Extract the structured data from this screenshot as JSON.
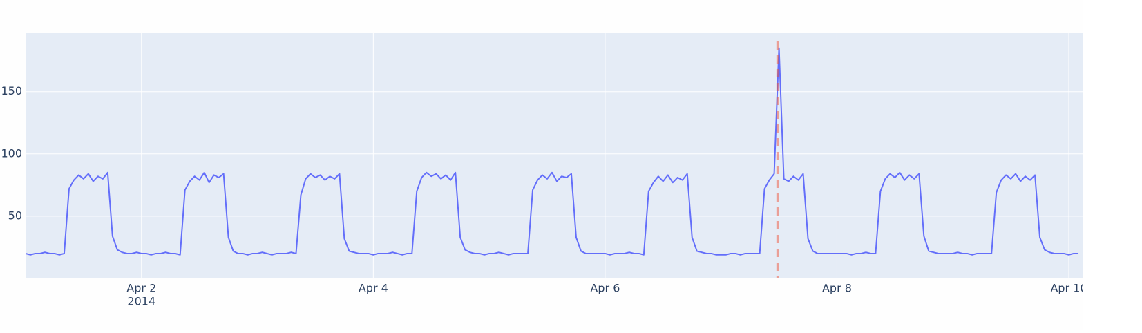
{
  "chart_data": {
    "type": "line",
    "x": [
      "2014-04-01 00:00",
      "2014-04-01 01:00",
      "2014-04-01 02:00",
      "2014-04-01 03:00",
      "2014-04-01 04:00",
      "2014-04-01 05:00",
      "2014-04-01 06:00",
      "2014-04-01 07:00",
      "2014-04-01 08:00",
      "2014-04-01 09:00",
      "2014-04-01 10:00",
      "2014-04-01 11:00",
      "2014-04-01 12:00",
      "2014-04-01 13:00",
      "2014-04-01 14:00",
      "2014-04-01 15:00",
      "2014-04-01 16:00",
      "2014-04-01 17:00",
      "2014-04-01 18:00",
      "2014-04-01 19:00",
      "2014-04-01 20:00",
      "2014-04-01 21:00",
      "2014-04-01 22:00",
      "2014-04-01 23:00",
      "2014-04-02 00:00",
      "2014-04-02 01:00",
      "2014-04-02 02:00",
      "2014-04-02 03:00",
      "2014-04-02 04:00",
      "2014-04-02 05:00",
      "2014-04-02 06:00",
      "2014-04-02 07:00",
      "2014-04-02 08:00",
      "2014-04-02 09:00",
      "2014-04-02 10:00",
      "2014-04-02 11:00",
      "2014-04-02 12:00",
      "2014-04-02 13:00",
      "2014-04-02 14:00",
      "2014-04-02 15:00",
      "2014-04-02 16:00",
      "2014-04-02 17:00",
      "2014-04-02 18:00",
      "2014-04-02 19:00",
      "2014-04-02 20:00",
      "2014-04-02 21:00",
      "2014-04-02 22:00",
      "2014-04-02 23:00",
      "2014-04-03 00:00",
      "2014-04-03 01:00",
      "2014-04-03 02:00",
      "2014-04-03 03:00",
      "2014-04-03 04:00",
      "2014-04-03 05:00",
      "2014-04-03 06:00",
      "2014-04-03 07:00",
      "2014-04-03 08:00",
      "2014-04-03 09:00",
      "2014-04-03 10:00",
      "2014-04-03 11:00",
      "2014-04-03 12:00",
      "2014-04-03 13:00",
      "2014-04-03 14:00",
      "2014-04-03 15:00",
      "2014-04-03 16:00",
      "2014-04-03 17:00",
      "2014-04-03 18:00",
      "2014-04-03 19:00",
      "2014-04-03 20:00",
      "2014-04-03 21:00",
      "2014-04-03 22:00",
      "2014-04-03 23:00",
      "2014-04-04 00:00",
      "2014-04-04 01:00",
      "2014-04-04 02:00",
      "2014-04-04 03:00",
      "2014-04-04 04:00",
      "2014-04-04 05:00",
      "2014-04-04 06:00",
      "2014-04-04 07:00",
      "2014-04-04 08:00",
      "2014-04-04 09:00",
      "2014-04-04 10:00",
      "2014-04-04 11:00",
      "2014-04-04 12:00",
      "2014-04-04 13:00",
      "2014-04-04 14:00",
      "2014-04-04 15:00",
      "2014-04-04 16:00",
      "2014-04-04 17:00",
      "2014-04-04 18:00",
      "2014-04-04 19:00",
      "2014-04-04 20:00",
      "2014-04-04 21:00",
      "2014-04-04 22:00",
      "2014-04-04 23:00",
      "2014-04-05 00:00",
      "2014-04-05 01:00",
      "2014-04-05 02:00",
      "2014-04-05 03:00",
      "2014-04-05 04:00",
      "2014-04-05 05:00",
      "2014-04-05 06:00",
      "2014-04-05 07:00",
      "2014-04-05 08:00",
      "2014-04-05 09:00",
      "2014-04-05 10:00",
      "2014-04-05 11:00",
      "2014-04-05 12:00",
      "2014-04-05 13:00",
      "2014-04-05 14:00",
      "2014-04-05 15:00",
      "2014-04-05 16:00",
      "2014-04-05 17:00",
      "2014-04-05 18:00",
      "2014-04-05 19:00",
      "2014-04-05 20:00",
      "2014-04-05 21:00",
      "2014-04-05 22:00",
      "2014-04-05 23:00",
      "2014-04-06 00:00",
      "2014-04-06 01:00",
      "2014-04-06 02:00",
      "2014-04-06 03:00",
      "2014-04-06 04:00",
      "2014-04-06 05:00",
      "2014-04-06 06:00",
      "2014-04-06 07:00",
      "2014-04-06 08:00",
      "2014-04-06 09:00",
      "2014-04-06 10:00",
      "2014-04-06 11:00",
      "2014-04-06 12:00",
      "2014-04-06 13:00",
      "2014-04-06 14:00",
      "2014-04-06 15:00",
      "2014-04-06 16:00",
      "2014-04-06 17:00",
      "2014-04-06 18:00",
      "2014-04-06 19:00",
      "2014-04-06 20:00",
      "2014-04-06 21:00",
      "2014-04-06 22:00",
      "2014-04-06 23:00",
      "2014-04-07 00:00",
      "2014-04-07 01:00",
      "2014-04-07 02:00",
      "2014-04-07 03:00",
      "2014-04-07 04:00",
      "2014-04-07 05:00",
      "2014-04-07 06:00",
      "2014-04-07 07:00",
      "2014-04-07 08:00",
      "2014-04-07 09:00",
      "2014-04-07 10:00",
      "2014-04-07 11:00",
      "2014-04-07 12:00",
      "2014-04-07 13:00",
      "2014-04-07 14:00",
      "2014-04-07 15:00",
      "2014-04-07 16:00",
      "2014-04-07 17:00",
      "2014-04-07 18:00",
      "2014-04-07 19:00",
      "2014-04-07 20:00",
      "2014-04-07 21:00",
      "2014-04-07 22:00",
      "2014-04-07 23:00",
      "2014-04-08 00:00",
      "2014-04-08 01:00",
      "2014-04-08 02:00",
      "2014-04-08 03:00",
      "2014-04-08 04:00",
      "2014-04-08 05:00",
      "2014-04-08 06:00",
      "2014-04-08 07:00",
      "2014-04-08 08:00",
      "2014-04-08 09:00",
      "2014-04-08 10:00",
      "2014-04-08 11:00",
      "2014-04-08 12:00",
      "2014-04-08 13:00",
      "2014-04-08 14:00",
      "2014-04-08 15:00",
      "2014-04-08 16:00",
      "2014-04-08 17:00",
      "2014-04-08 18:00",
      "2014-04-08 19:00",
      "2014-04-08 20:00",
      "2014-04-08 21:00",
      "2014-04-08 22:00",
      "2014-04-08 23:00",
      "2014-04-09 00:00",
      "2014-04-09 01:00",
      "2014-04-09 02:00",
      "2014-04-09 03:00",
      "2014-04-09 04:00",
      "2014-04-09 05:00",
      "2014-04-09 06:00",
      "2014-04-09 07:00",
      "2014-04-09 08:00",
      "2014-04-09 09:00",
      "2014-04-09 10:00",
      "2014-04-09 11:00",
      "2014-04-09 12:00",
      "2014-04-09 13:00",
      "2014-04-09 14:00",
      "2014-04-09 15:00",
      "2014-04-09 16:00",
      "2014-04-09 17:00",
      "2014-04-09 18:00",
      "2014-04-09 19:00",
      "2014-04-09 20:00",
      "2014-04-09 21:00",
      "2014-04-09 22:00",
      "2014-04-09 23:00",
      "2014-04-10 00:00",
      "2014-04-10 01:00",
      "2014-04-10 02:00"
    ],
    "series": [
      {
        "color": "#636efa",
        "values": [
          20,
          19,
          20,
          20,
          21,
          20,
          20,
          19,
          20,
          72,
          79,
          83,
          80,
          84,
          78,
          82,
          80,
          85,
          34,
          23,
          21,
          20,
          20,
          21,
          20,
          20,
          19,
          20,
          20,
          21,
          20,
          20,
          19,
          71,
          78,
          82,
          79,
          85,
          77,
          83,
          81,
          84,
          33,
          22,
          20,
          20,
          19,
          20,
          20,
          21,
          20,
          19,
          20,
          20,
          20,
          21,
          20,
          67,
          80,
          84,
          81,
          83,
          79,
          82,
          80,
          84,
          32,
          22,
          21,
          20,
          20,
          20,
          19,
          20,
          20,
          20,
          21,
          20,
          19,
          20,
          20,
          70,
          81,
          85,
          82,
          84,
          80,
          83,
          79,
          85,
          33,
          23,
          21,
          20,
          20,
          19,
          20,
          20,
          21,
          20,
          19,
          20,
          20,
          20,
          20,
          71,
          79,
          83,
          80,
          85,
          78,
          82,
          81,
          84,
          33,
          22,
          20,
          20,
          20,
          20,
          20,
          19,
          20,
          20,
          20,
          21,
          20,
          20,
          19,
          70,
          77,
          82,
          78,
          83,
          77,
          81,
          79,
          84,
          33,
          22,
          21,
          20,
          20,
          19,
          19,
          19,
          20,
          20,
          19,
          20,
          20,
          20,
          20,
          72,
          79,
          84,
          185,
          80,
          78,
          82,
          79,
          84,
          32,
          22,
          20,
          20,
          20,
          20,
          20,
          20,
          20,
          19,
          20,
          20,
          21,
          20,
          20,
          70,
          80,
          84,
          81,
          85,
          79,
          83,
          80,
          84,
          34,
          22,
          21,
          20,
          20,
          20,
          20,
          21,
          20,
          20,
          19,
          20,
          20,
          20,
          20,
          69,
          79,
          83,
          80,
          84,
          78,
          82,
          79,
          83,
          33,
          23,
          21,
          20,
          20,
          20,
          19,
          20,
          20
        ]
      }
    ],
    "vlines": [
      {
        "x": "2014-04-07 11:45",
        "color": "#ef553b"
      }
    ],
    "xlim": [
      "2014-04-01 00:00",
      "2014-04-10 03:00"
    ],
    "xticks": [
      {
        "value": "2014-04-02 00:00",
        "label": "Apr 2",
        "sublabel": "2014"
      },
      {
        "value": "2014-04-04 00:00",
        "label": "Apr 4"
      },
      {
        "value": "2014-04-06 00:00",
        "label": "Apr 6"
      },
      {
        "value": "2014-04-08 00:00",
        "label": "Apr 8"
      },
      {
        "value": "2014-04-10 00:00",
        "label": "Apr 10"
      }
    ],
    "ylim": [
      0,
      197
    ],
    "yticks": [
      50,
      100,
      150
    ],
    "grid": true
  }
}
